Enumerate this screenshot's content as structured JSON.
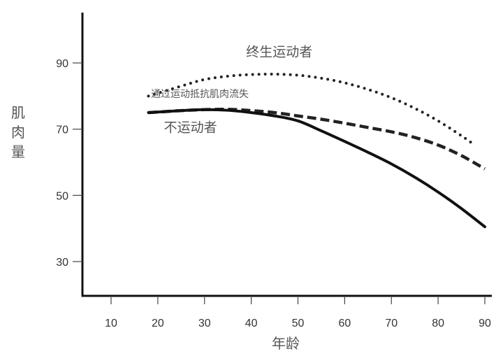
{
  "chart_data": {
    "type": "line",
    "title": "",
    "xlabel": "年龄",
    "ylabel": "肌肉量",
    "xlim": [
      5,
      90
    ],
    "ylim": [
      20,
      105
    ],
    "x_ticks": [
      10,
      20,
      30,
      40,
      50,
      60,
      70,
      80,
      90
    ],
    "y_ticks": [
      30,
      50,
      70,
      90
    ],
    "grid": false,
    "series": [
      {
        "name": "终生运动者",
        "style": "dotted",
        "color": "#222222",
        "x": [
          18,
          25,
          30,
          35,
          40,
          45,
          50,
          55,
          60,
          65,
          70,
          75,
          80,
          85,
          88
        ],
        "y": [
          80,
          83,
          85,
          86,
          86.5,
          86.6,
          86.3,
          85.4,
          84,
          82,
          79.5,
          76.3,
          72.5,
          68,
          65
        ]
      },
      {
        "name": "通过运动抵抗肌肉流失",
        "style": "dashed",
        "color": "#222222",
        "x": [
          18,
          25,
          30,
          35,
          40,
          45,
          50,
          55,
          60,
          65,
          70,
          75,
          80,
          85,
          90
        ],
        "y": [
          75,
          75.6,
          75.9,
          76,
          75.6,
          75,
          74,
          73,
          71.8,
          70.5,
          69.2,
          67.5,
          65.2,
          62,
          58
        ]
      },
      {
        "name": "不运动者",
        "style": "solid",
        "color": "#111111",
        "x": [
          18,
          25,
          30,
          35,
          40,
          45,
          50,
          55,
          60,
          65,
          70,
          75,
          80,
          85,
          90
        ],
        "y": [
          75,
          75.6,
          75.9,
          75.7,
          75,
          74,
          72.5,
          69.5,
          66.3,
          63,
          59.5,
          55.5,
          51,
          46,
          40.5
        ]
      }
    ],
    "annotations": [
      {
        "text": "终生运动者",
        "x": 46,
        "y": 92,
        "size": "large"
      },
      {
        "text": "通过运动抵抗肌肉流失",
        "x": 29,
        "y": 79.6,
        "size": "small"
      },
      {
        "text": "不运动者",
        "x": 27,
        "y": 69.2,
        "size": "large"
      }
    ]
  }
}
